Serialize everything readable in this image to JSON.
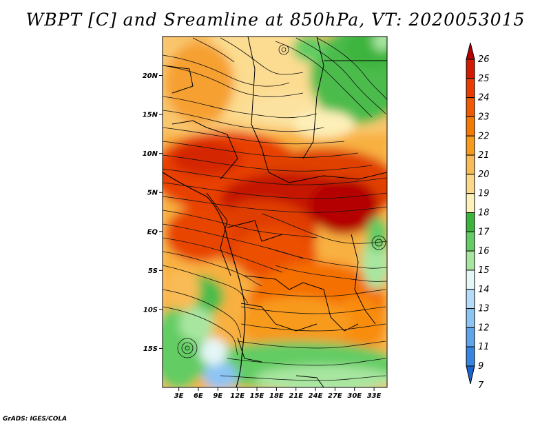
{
  "title": "WBPT [C] and Sreamline at 850hPa, VT: 2020053015",
  "footer": "GrADS: IGES/COLA",
  "map": {
    "lat_ticks": [
      "20N",
      "15N",
      "10N",
      "5N",
      "EQ",
      "5S",
      "10S",
      "15S"
    ],
    "lat_values": [
      20,
      15,
      10,
      5,
      0,
      -5,
      -10,
      -15
    ],
    "lon_ticks": [
      "3E",
      "6E",
      "9E",
      "12E",
      "15E",
      "18E",
      "21E",
      "24E",
      "27E",
      "30E",
      "33E"
    ],
    "lon_values": [
      3,
      6,
      9,
      12,
      15,
      18,
      21,
      24,
      27,
      30,
      33
    ],
    "lon_range": [
      0.5,
      35
    ],
    "lat_range": [
      -20,
      25
    ]
  },
  "colorbar": {
    "labels": [
      "26",
      "25",
      "24",
      "23",
      "22",
      "21",
      "20",
      "19",
      "18",
      "17",
      "16",
      "15",
      "14",
      "13",
      "12",
      "11",
      "9",
      "7"
    ],
    "colors": [
      "#b40000",
      "#d21a00",
      "#e83c00",
      "#f05a00",
      "#f57800",
      "#f89a1c",
      "#f9bb55",
      "#fbd888",
      "#fdf0b8",
      "#3cb43c",
      "#64cc64",
      "#a8e6a0",
      "#e4f6f6",
      "#b4dcf8",
      "#8cc4f4",
      "#5ca4ec",
      "#3486e0",
      "#1864d0"
    ]
  }
}
